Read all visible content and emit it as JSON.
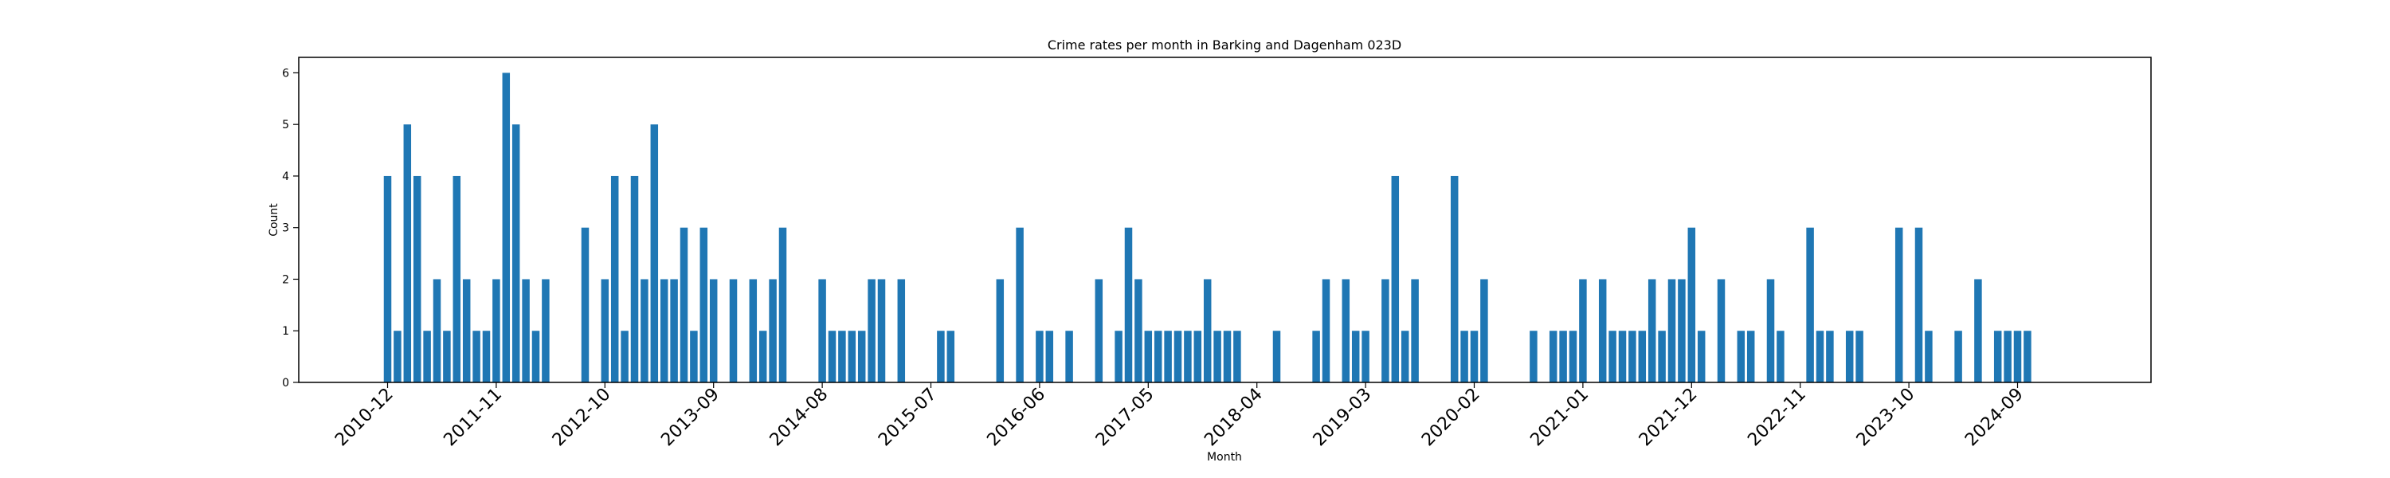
{
  "chart_data": {
    "type": "bar",
    "title": "Crime rates per month in Barking and Dagenham 023D",
    "xlabel": "Month",
    "ylabel": "Count",
    "ylim": [
      0,
      6.3
    ],
    "yticks": [
      0,
      1,
      2,
      3,
      4,
      5,
      6
    ],
    "xticks": [
      "2010-12",
      "2011-11",
      "2012-10",
      "2013-09",
      "2014-08",
      "2015-07",
      "2016-06",
      "2017-05",
      "2018-04",
      "2019-03",
      "2020-02",
      "2021-01",
      "2021-12",
      "2022-11",
      "2023-10",
      "2024-09"
    ],
    "grid": false,
    "bar_color": "#1f77b4",
    "categories": [
      "2010-12",
      "2011-01",
      "2011-02",
      "2011-03",
      "2011-04",
      "2011-05",
      "2011-06",
      "2011-07",
      "2011-08",
      "2011-09",
      "2011-10",
      "2011-11",
      "2011-12",
      "2012-01",
      "2012-02",
      "2012-03",
      "2012-04",
      "2012-08",
      "2012-10",
      "2012-11",
      "2012-12",
      "2013-01",
      "2013-02",
      "2013-03",
      "2013-04",
      "2013-05",
      "2013-06",
      "2013-07",
      "2013-08",
      "2013-09",
      "2013-11",
      "2014-01",
      "2014-02",
      "2014-03",
      "2014-04",
      "2014-08",
      "2014-09",
      "2014-10",
      "2014-11",
      "2014-12",
      "2015-01",
      "2015-02",
      "2015-04",
      "2015-08",
      "2015-09",
      "2016-02",
      "2016-04",
      "2016-06",
      "2016-07",
      "2016-09",
      "2016-12",
      "2017-02",
      "2017-03",
      "2017-04",
      "2017-05",
      "2017-06",
      "2017-07",
      "2017-08",
      "2017-09",
      "2017-10",
      "2017-11",
      "2017-12",
      "2018-01",
      "2018-02",
      "2018-06",
      "2018-10",
      "2018-11",
      "2019-01",
      "2019-02",
      "2019-03",
      "2019-05",
      "2019-06",
      "2019-07",
      "2019-08",
      "2019-12",
      "2020-01",
      "2020-02",
      "2020-03",
      "2020-08",
      "2020-10",
      "2020-11",
      "2020-12",
      "2021-01",
      "2021-03",
      "2021-04",
      "2021-05",
      "2021-06",
      "2021-07",
      "2021-08",
      "2021-09",
      "2021-10",
      "2021-11",
      "2021-12",
      "2022-01",
      "2022-03",
      "2022-05",
      "2022-06",
      "2022-08",
      "2022-09",
      "2022-12",
      "2023-01",
      "2023-02",
      "2023-04",
      "2023-05",
      "2023-09",
      "2023-11",
      "2023-12",
      "2024-03",
      "2024-05",
      "2024-07",
      "2024-08",
      "2024-09",
      "2024-10"
    ],
    "values": [
      4,
      1,
      5,
      4,
      1,
      2,
      1,
      4,
      2,
      1,
      1,
      2,
      6,
      5,
      2,
      1,
      2,
      3,
      2,
      4,
      1,
      4,
      2,
      5,
      2,
      2,
      3,
      1,
      3,
      2,
      2,
      2,
      1,
      2,
      3,
      2,
      1,
      1,
      1,
      1,
      2,
      2,
      2,
      1,
      1,
      2,
      3,
      1,
      1,
      1,
      2,
      1,
      3,
      2,
      1,
      1,
      1,
      1,
      1,
      1,
      2,
      1,
      1,
      1,
      1,
      1,
      2,
      2,
      1,
      1,
      2,
      4,
      1,
      2,
      4,
      1,
      1,
      2,
      1,
      1,
      1,
      1,
      2,
      2,
      1,
      1,
      1,
      1,
      2,
      1,
      2,
      2,
      3,
      1,
      2,
      1,
      1,
      2,
      1,
      3,
      1,
      1,
      1,
      1,
      3,
      3,
      1,
      1,
      2,
      1,
      1,
      1,
      1
    ]
  }
}
